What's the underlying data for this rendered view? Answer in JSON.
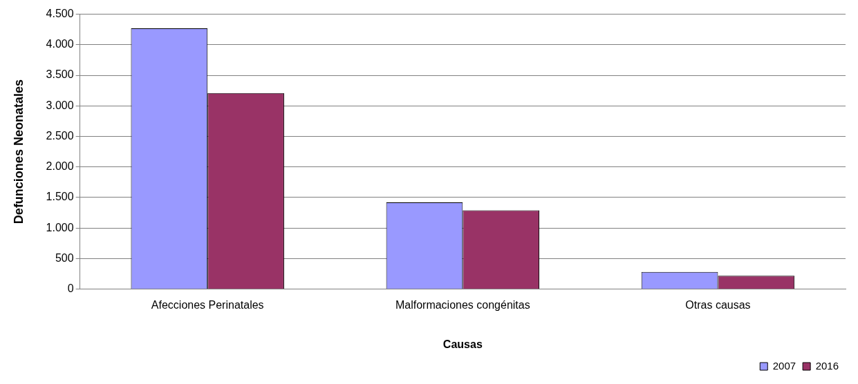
{
  "chart_data": {
    "type": "bar",
    "xlabel": "Causas",
    "ylabel": "Defunciones Neonatales",
    "categories": [
      "Afecciones Perinatales",
      "Malformaciones congénitas",
      "Otras causas"
    ],
    "series": [
      {
        "name": "2007",
        "color": "#9999ff",
        "values": [
          4270,
          1420,
          280
        ]
      },
      {
        "name": "2016",
        "color": "#993366",
        "values": [
          3210,
          1290,
          220
        ]
      }
    ],
    "ylim": [
      0,
      4500
    ],
    "yticks": [
      {
        "value": 0,
        "label": "0"
      },
      {
        "value": 500,
        "label": "500"
      },
      {
        "value": 1000,
        "label": "1.000"
      },
      {
        "value": 1500,
        "label": "1.500"
      },
      {
        "value": 2000,
        "label": "2.000"
      },
      {
        "value": 2500,
        "label": "2.500"
      },
      {
        "value": 3000,
        "label": "3.000"
      },
      {
        "value": 3500,
        "label": "3.500"
      },
      {
        "value": 4000,
        "label": "4.000"
      },
      {
        "value": 4500,
        "label": "4.500"
      }
    ],
    "grid": "y",
    "legend": "bottom right"
  }
}
